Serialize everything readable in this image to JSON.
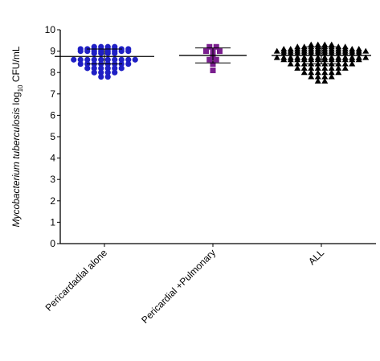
{
  "chart_data": {
    "type": "dot",
    "ylabel": [
      "Mycobacterium tuberculosis",
      "log",
      "10",
      "CFU/mL"
    ],
    "categories": [
      "Pericardadial alone",
      "Pericardial +Pulmonary",
      "ALL"
    ],
    "ylim": [
      0,
      10
    ],
    "yticks": [
      0,
      1,
      2,
      3,
      4,
      5,
      6,
      7,
      8,
      9,
      10
    ],
    "groups": [
      {
        "color": "#1f1fc4",
        "marker": "circle",
        "mean": 8.75,
        "sd": 0.35,
        "values": [
          9.2,
          9.2,
          9.2,
          9.2,
          9.1,
          9.1,
          9.1,
          9.1,
          9.1,
          9.1,
          9.1,
          9.1,
          9.0,
          9.0,
          9.0,
          9.0,
          9.0,
          9.0,
          9.0,
          9.0,
          8.9,
          8.9,
          8.9,
          8.9,
          8.6,
          8.6,
          8.6,
          8.6,
          8.6,
          8.6,
          8.6,
          8.6,
          8.6,
          8.6,
          8.4,
          8.4,
          8.4,
          8.4,
          8.4,
          8.4,
          8.4,
          8.4,
          8.2,
          8.2,
          8.2,
          8.2,
          8.2,
          8.2,
          8.0,
          8.0,
          8.0,
          8.0,
          7.8,
          7.8
        ]
      },
      {
        "color": "#7a1f8e",
        "marker": "square",
        "mean": 8.8,
        "sd": 0.35,
        "values": [
          9.2,
          9.2,
          9.0,
          9.0,
          9.0,
          8.8,
          8.7,
          8.6,
          8.6,
          8.4,
          8.1
        ]
      },
      {
        "color": "#000000",
        "marker": "triangle",
        "mean": 8.8,
        "sd": 0.4,
        "values": [
          9.3,
          9.3,
          9.3,
          9.3,
          9.2,
          9.2,
          9.2,
          9.2,
          9.2,
          9.2,
          9.2,
          9.2,
          9.1,
          9.1,
          9.1,
          9.1,
          9.1,
          9.1,
          9.1,
          9.1,
          9.1,
          9.1,
          9.1,
          9.1,
          9.0,
          9.0,
          9.0,
          9.0,
          9.0,
          9.0,
          9.0,
          9.0,
          9.0,
          9.0,
          9.0,
          9.0,
          9.0,
          9.0,
          8.9,
          8.9,
          8.9,
          8.9,
          8.9,
          8.9,
          8.9,
          8.9,
          8.9,
          8.9,
          8.9,
          8.9,
          8.7,
          8.7,
          8.7,
          8.7,
          8.7,
          8.7,
          8.7,
          8.7,
          8.7,
          8.7,
          8.7,
          8.7,
          8.7,
          8.7,
          8.6,
          8.6,
          8.6,
          8.6,
          8.6,
          8.6,
          8.6,
          8.6,
          8.6,
          8.6,
          8.6,
          8.6,
          8.4,
          8.4,
          8.4,
          8.4,
          8.4,
          8.4,
          8.4,
          8.4,
          8.4,
          8.4,
          8.2,
          8.2,
          8.2,
          8.2,
          8.2,
          8.2,
          8.2,
          8.2,
          8.0,
          8.0,
          8.0,
          8.0,
          8.0,
          8.0,
          7.8,
          7.8,
          7.8,
          7.8,
          7.6,
          7.6
        ]
      }
    ]
  }
}
